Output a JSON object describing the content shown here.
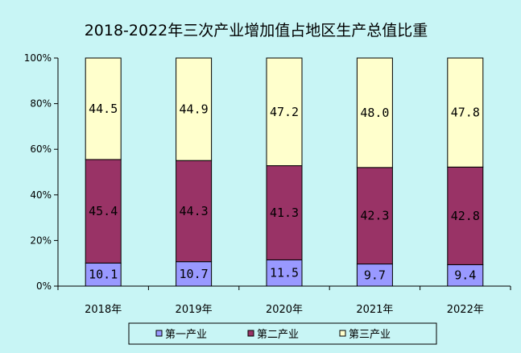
{
  "chart_data": {
    "type": "bar",
    "stacked": true,
    "percent": true,
    "title": "2018-2022年三次产业增加值占地区生产总值比重",
    "categories": [
      "2018年",
      "2019年",
      "2020年",
      "2021年",
      "2022年"
    ],
    "series": [
      {
        "name": "第一产业",
        "values": [
          10.1,
          10.7,
          11.5,
          9.7,
          9.4
        ],
        "labels": [
          "10.1",
          "10.7",
          "11.5",
          "9.7",
          "9.4"
        ],
        "color": "#9999ff"
      },
      {
        "name": "第二产业",
        "values": [
          45.4,
          44.3,
          41.3,
          42.3,
          42.8
        ],
        "labels": [
          "45.4",
          "44.3",
          "41.3",
          "42.3",
          "42.8"
        ],
        "color": "#993366"
      },
      {
        "name": "第三产业",
        "values": [
          44.5,
          44.9,
          47.2,
          48.0,
          47.8
        ],
        "labels": [
          "44.5",
          "44.9",
          "47.2",
          "48.0",
          "47.8"
        ],
        "color": "#ffffcc"
      }
    ],
    "y_ticks": [
      "0%",
      "20%",
      "40%",
      "60%",
      "80%",
      "100%"
    ],
    "ylim": [
      0,
      100
    ],
    "grid": false,
    "legend_position": "bottom"
  }
}
